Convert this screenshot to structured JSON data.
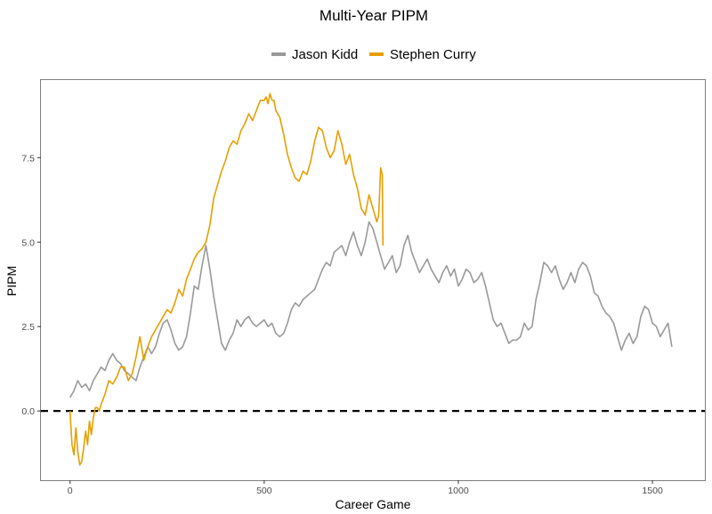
{
  "chart_data": {
    "type": "line",
    "title": "Multi-Year PIPM",
    "xlabel": "Career Game",
    "ylabel": "PIPM",
    "xlim": [
      -75,
      1635
    ],
    "ylim": [
      -2.05,
      9.8
    ],
    "x_ticks": [
      0,
      500,
      1000,
      1500
    ],
    "y_ticks": [
      0.0,
      2.5,
      5.0,
      7.5
    ],
    "x_tick_labels": [
      "0",
      "500",
      "1000",
      "1500"
    ],
    "y_tick_labels": [
      "0.0",
      "2.5",
      "5.0",
      "7.5"
    ],
    "grid": false,
    "legend_position": "top",
    "reference_line": {
      "y": 0,
      "style": "dashed",
      "color": "#000000"
    },
    "series": [
      {
        "name": "Jason Kidd",
        "color": "#999999",
        "x": [
          0,
          10,
          20,
          30,
          40,
          50,
          60,
          70,
          80,
          90,
          100,
          110,
          120,
          130,
          140,
          150,
          160,
          170,
          180,
          190,
          200,
          210,
          220,
          230,
          240,
          250,
          260,
          270,
          280,
          290,
          300,
          310,
          320,
          330,
          340,
          350,
          360,
          370,
          380,
          390,
          400,
          410,
          420,
          430,
          440,
          450,
          460,
          470,
          480,
          490,
          500,
          510,
          520,
          530,
          540,
          550,
          560,
          570,
          580,
          590,
          600,
          610,
          620,
          630,
          640,
          650,
          660,
          670,
          680,
          690,
          700,
          710,
          720,
          730,
          740,
          750,
          760,
          770,
          780,
          790,
          800,
          810,
          820,
          830,
          840,
          850,
          860,
          870,
          880,
          890,
          900,
          910,
          920,
          930,
          940,
          950,
          960,
          970,
          980,
          990,
          1000,
          1010,
          1020,
          1030,
          1040,
          1050,
          1060,
          1070,
          1080,
          1090,
          1100,
          1110,
          1120,
          1130,
          1140,
          1150,
          1160,
          1170,
          1180,
          1190,
          1200,
          1210,
          1220,
          1230,
          1240,
          1250,
          1260,
          1270,
          1280,
          1290,
          1300,
          1310,
          1320,
          1330,
          1340,
          1350,
          1360,
          1370,
          1380,
          1390,
          1400,
          1410,
          1420,
          1430,
          1440,
          1450,
          1460,
          1470,
          1480,
          1490,
          1500,
          1510,
          1520,
          1530,
          1540,
          1550
        ],
        "y": [
          0.4,
          0.6,
          0.9,
          0.7,
          0.8,
          0.6,
          0.9,
          1.1,
          1.3,
          1.2,
          1.5,
          1.7,
          1.5,
          1.4,
          1.2,
          1.1,
          1.0,
          0.9,
          1.3,
          1.6,
          1.9,
          1.7,
          1.9,
          2.3,
          2.6,
          2.7,
          2.4,
          2.0,
          1.8,
          1.9,
          2.2,
          2.9,
          3.7,
          3.6,
          4.3,
          4.9,
          4.2,
          3.4,
          2.7,
          2.0,
          1.8,
          2.1,
          2.3,
          2.7,
          2.5,
          2.7,
          2.8,
          2.6,
          2.5,
          2.6,
          2.7,
          2.5,
          2.6,
          2.3,
          2.2,
          2.3,
          2.6,
          3.0,
          3.2,
          3.1,
          3.3,
          3.4,
          3.5,
          3.6,
          3.9,
          4.2,
          4.4,
          4.3,
          4.7,
          4.8,
          4.9,
          4.6,
          5.0,
          5.3,
          4.9,
          4.6,
          5.0,
          5.6,
          5.4,
          5.0,
          4.6,
          4.2,
          4.4,
          4.6,
          4.1,
          4.3,
          4.9,
          5.2,
          4.7,
          4.4,
          4.1,
          4.3,
          4.5,
          4.2,
          4.0,
          3.8,
          4.1,
          4.3,
          4.0,
          4.2,
          3.7,
          3.9,
          4.2,
          4.1,
          3.8,
          3.9,
          4.1,
          3.7,
          3.2,
          2.7,
          2.5,
          2.6,
          2.3,
          2.0,
          2.1,
          2.1,
          2.2,
          2.6,
          2.4,
          2.5,
          3.3,
          3.8,
          4.4,
          4.3,
          4.1,
          4.3,
          3.9,
          3.6,
          3.8,
          4.1,
          3.8,
          4.2,
          4.4,
          4.3,
          4.0,
          3.5,
          3.4,
          3.1,
          2.9,
          2.8,
          2.6,
          2.2,
          1.8,
          2.1,
          2.3,
          2.0,
          2.2,
          2.8,
          3.1,
          3.0,
          2.6,
          2.5,
          2.2,
          2.4,
          2.6,
          1.9
        ],
        "legend_label": "Jason Kidd"
      },
      {
        "name": "Stephen Curry",
        "color": "#E69F00",
        "x": [
          0,
          5,
          10,
          15,
          20,
          25,
          30,
          35,
          40,
          45,
          50,
          55,
          60,
          65,
          70,
          75,
          80,
          90,
          100,
          110,
          120,
          130,
          140,
          150,
          160,
          170,
          180,
          190,
          200,
          210,
          220,
          230,
          240,
          250,
          260,
          270,
          280,
          290,
          300,
          310,
          320,
          330,
          340,
          350,
          360,
          370,
          380,
          390,
          400,
          410,
          420,
          430,
          440,
          450,
          460,
          470,
          480,
          490,
          500,
          505,
          510,
          515,
          520,
          525,
          530,
          540,
          550,
          560,
          570,
          580,
          590,
          600,
          610,
          620,
          630,
          640,
          650,
          660,
          670,
          680,
          690,
          700,
          710,
          720,
          730,
          740,
          750,
          760,
          770,
          780,
          790,
          795,
          800,
          804,
          806
        ],
        "y": [
          0.0,
          -1.0,
          -1.3,
          -0.5,
          -1.2,
          -1.6,
          -1.5,
          -1.1,
          -0.6,
          -1.0,
          -0.3,
          -0.7,
          -0.2,
          0.1,
          0.1,
          0.0,
          0.2,
          0.5,
          0.9,
          0.8,
          1.0,
          1.3,
          1.3,
          0.9,
          1.1,
          1.6,
          2.2,
          1.5,
          1.9,
          2.2,
          2.4,
          2.6,
          2.8,
          3.0,
          2.9,
          3.2,
          3.6,
          3.4,
          3.9,
          4.2,
          4.5,
          4.7,
          4.8,
          5.0,
          5.5,
          6.3,
          6.7,
          7.1,
          7.4,
          7.8,
          8.0,
          7.9,
          8.3,
          8.5,
          8.8,
          8.6,
          8.9,
          9.2,
          9.2,
          9.3,
          9.1,
          9.4,
          9.2,
          9.2,
          8.9,
          8.7,
          8.2,
          7.6,
          7.2,
          6.9,
          6.8,
          7.1,
          7.0,
          7.4,
          8.0,
          8.4,
          8.3,
          7.8,
          7.5,
          7.7,
          8.3,
          7.9,
          7.3,
          7.6,
          7.0,
          6.6,
          6.0,
          5.8,
          6.4,
          6.0,
          5.6,
          5.8,
          7.2,
          7.0,
          4.9
        ],
        "legend_label": "Stephen Curry"
      }
    ]
  }
}
